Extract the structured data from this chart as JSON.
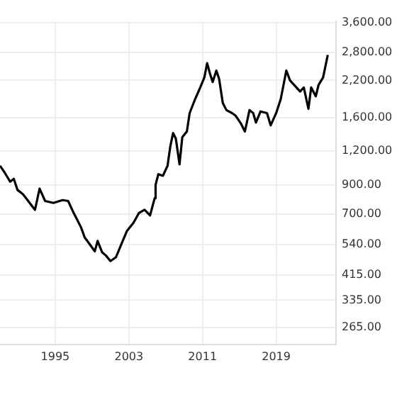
{
  "chart_data": {
    "type": "line",
    "log": "y",
    "grid": true,
    "legend": false,
    "marker": "none",
    "line_style": "solid",
    "xlim": [
      1989,
      2025.5
    ],
    "xticks": [
      1995,
      2003,
      2011,
      2019
    ],
    "ylim": [
      229,
      3650
    ],
    "yticks": [
      {
        "value": 3600,
        "label": "3,600.00"
      },
      {
        "value": 2800,
        "label": "2,800.00"
      },
      {
        "value": 2200,
        "label": "2,200.00"
      },
      {
        "value": 1600,
        "label": "1,600.00"
      },
      {
        "value": 1200,
        "label": "1,200.00"
      },
      {
        "value": 900,
        "label": "900.00"
      },
      {
        "value": 700,
        "label": "700.00"
      },
      {
        "value": 540,
        "label": "540.00"
      },
      {
        "value": 415,
        "label": "415.00"
      },
      {
        "value": 335,
        "label": "335.00"
      },
      {
        "value": 265,
        "label": "265.00"
      }
    ],
    "series": [
      {
        "color": "#000000",
        "x": [
          1989.0,
          1989.5,
          1990.1,
          1990.5,
          1990.9,
          1991.5,
          1992.8,
          1993.3,
          1993.9,
          1994.8,
          1995.8,
          1996.4,
          1997.0,
          1997.8,
          1998.2,
          1998.7,
          1999.3,
          1999.6,
          2000.1,
          2000.5,
          2001.0,
          2001.6,
          2002.2,
          2002.8,
          2003.5,
          2004.1,
          2004.7,
          2005.3,
          2005.8,
          2005.9,
          2006.2,
          2006.7,
          2007.2,
          2007.5,
          2007.8,
          2008.1,
          2008.5,
          2008.8,
          2009.3,
          2009.6,
          2010.2,
          2010.7,
          2011.2,
          2011.5,
          2011.8,
          2012.1,
          2012.5,
          2012.8,
          2013.2,
          2013.6,
          2014.2,
          2014.6,
          2015.2,
          2015.6,
          2016.1,
          2016.5,
          2016.8,
          2017.3,
          2018.0,
          2018.4,
          2019.0,
          2019.5,
          2020.1,
          2020.5,
          2021.2,
          2021.6,
          2022.0,
          2022.5,
          2022.8,
          2023.3,
          2023.6,
          2024.1,
          2024.6
        ],
        "values": [
          1059,
          1000,
          924,
          947,
          861,
          830,
          726,
          870,
          783,
          770,
          789,
          783,
          707,
          625,
          573,
          543,
          509,
          556,
          504,
          491,
          468,
          484,
          543,
          607,
          650,
          707,
          726,
          692,
          802,
          900,
          985,
          972,
          1059,
          1251,
          1401,
          1336,
          1072,
          1352,
          1420,
          1663,
          1877,
          2050,
          2257,
          2550,
          2336,
          2170,
          2393,
          2229,
          1813,
          1705,
          1663,
          1625,
          1514,
          1420,
          1705,
          1663,
          1534,
          1686,
          1663,
          1497,
          1663,
          1877,
          2393,
          2200,
          2070,
          2000,
          2070,
          1725,
          2070,
          1920,
          2116,
          2257,
          2735
        ]
      }
    ]
  }
}
